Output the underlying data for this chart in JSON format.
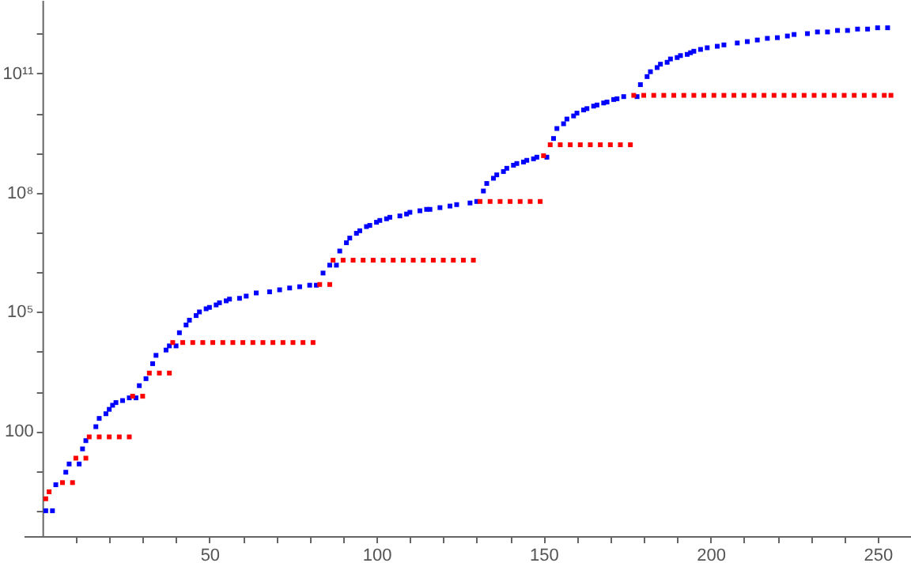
{
  "chart_data": {
    "type": "scatter",
    "series": [
      {
        "color": "#0000ff",
        "x": [
          1,
          3,
          4,
          7,
          8,
          11,
          12,
          13,
          16,
          17,
          19,
          20,
          21,
          22,
          24,
          26,
          28,
          29,
          31,
          33,
          34,
          37,
          38,
          40,
          41,
          43,
          44,
          46,
          47,
          49,
          50,
          52,
          53,
          55,
          56,
          59,
          61,
          64,
          68,
          71,
          74,
          77,
          80,
          82,
          84,
          86,
          88,
          89,
          91,
          92,
          94,
          95,
          97,
          98,
          100,
          101,
          103,
          104,
          107,
          109,
          110,
          113,
          115,
          116,
          119,
          122,
          124,
          128,
          130,
          132,
          133,
          135,
          136,
          138,
          139,
          141,
          142,
          144,
          145,
          147,
          148,
          151,
          153,
          154,
          156,
          157,
          159,
          160,
          162,
          163,
          165,
          166,
          168,
          169,
          171,
          172,
          174,
          178,
          179,
          181,
          182,
          184,
          185,
          187,
          188,
          190,
          191,
          193,
          194,
          195,
          197,
          199,
          202,
          204,
          208,
          211,
          214,
          217,
          220,
          223,
          225,
          229,
          232,
          235,
          238,
          241,
          244,
          247,
          250,
          253
        ],
        "values": [
          1,
          1,
          4.5,
          9.3,
          15,
          15,
          36,
          58,
          130,
          210,
          275,
          355,
          450,
          525,
          590,
          690,
          690,
          1400,
          2100,
          5000,
          8100,
          11000,
          14000,
          14000,
          30000,
          47000,
          62000,
          81000,
          100000,
          120000,
          130000,
          150000,
          170000,
          190000,
          210000,
          220000,
          250000,
          300000,
          320000,
          360000,
          400000,
          430000,
          470000,
          470000,
          950000,
          1500000.0,
          1500000.0,
          3400000.0,
          5500000.0,
          7200000.0,
          9500000.0,
          11000000.0,
          14000000.0,
          15000000.0,
          18000000.0,
          20000000.0,
          22000000.0,
          24000000.0,
          26000000.0,
          29000000.0,
          32000000.0,
          35000000.0,
          38000000.0,
          38000000.0,
          42000000.0,
          46000000.0,
          50000000.0,
          55000000.0,
          60000000.0,
          110000000.0,
          170000000.0,
          230000000.0,
          280000000.0,
          340000000.0,
          410000000.0,
          490000000.0,
          540000000.0,
          590000000.0,
          650000000.0,
          710000000.0,
          780000000.0,
          780000000.0,
          2300000000.0,
          4100000000.0,
          5400000000.0,
          7100000000.0,
          8500000000.0,
          10000000000.0,
          12000000000.0,
          13000000000.0,
          15000000000.0,
          16000000000.0,
          18000000000.0,
          19000000000.0,
          22000000000.0,
          23000000000.0,
          26000000000.0,
          26000000000.0,
          52000000000.0,
          83000000000.0,
          110000000000.0,
          140000000000.0,
          170000000000.0,
          190000000000.0,
          230000000000.0,
          250000000000.0,
          280000000000.0,
          300000000000.0,
          330000000000.0,
          360000000000.0,
          400000000000.0,
          440000000000.0,
          480000000000.0,
          520000000000.0,
          580000000000.0,
          630000000000.0,
          690000000000.0,
          760000000000.0,
          790000000000.0,
          870000000000.0,
          950000000000.0,
          1000000000000.0,
          1100000000000.0,
          1100000000000.0,
          1200000000000.0,
          1200000000000.0,
          1300000000000.0,
          1300000000000.0,
          1400000000000.0,
          1400000000000.0
        ]
      },
      {
        "color": "#ff0000",
        "x": [
          1,
          2,
          6,
          9,
          10,
          13,
          14,
          17,
          20,
          23,
          26,
          27,
          30,
          32,
          35,
          38,
          39,
          42,
          45,
          48,
          51,
          54,
          57,
          60,
          63,
          66,
          69,
          72,
          75,
          78,
          81,
          83,
          86,
          87,
          90,
          93,
          96,
          99,
          102,
          105,
          108,
          111,
          114,
          117,
          120,
          123,
          126,
          129,
          131,
          134,
          137,
          140,
          143,
          146,
          149,
          150,
          152,
          155,
          158,
          161,
          164,
          167,
          170,
          173,
          176,
          177,
          180,
          183,
          186,
          189,
          192,
          195,
          198,
          201,
          204,
          207,
          210,
          213,
          216,
          219,
          222,
          225,
          228,
          231,
          234,
          237,
          240,
          243,
          246,
          249,
          252,
          254
        ],
        "values": [
          2.0,
          3.0,
          5.1,
          5.1,
          21,
          21,
          72,
          72,
          72,
          72,
          72,
          760,
          760,
          2900,
          2900,
          2900,
          17000,
          17000,
          17000,
          17000,
          17000,
          17000,
          17000,
          17000,
          17000,
          17000,
          17000,
          17000,
          17000,
          17000,
          17000,
          490000,
          490000,
          2000000.0,
          2000000.0,
          2000000.0,
          2000000.0,
          2000000.0,
          2000000.0,
          2000000.0,
          2000000.0,
          2000000.0,
          2000000.0,
          2000000.0,
          2000000.0,
          2000000.0,
          2000000.0,
          2000000.0,
          60000000.0,
          60000000.0,
          60000000.0,
          60000000.0,
          60000000.0,
          60000000.0,
          60000000.0,
          850000000.0,
          1600000000.0,
          1600000000.0,
          1600000000.0,
          1600000000.0,
          1600000000.0,
          1600000000.0,
          1600000000.0,
          1600000000.0,
          1600000000.0,
          28000000000.0,
          28000000000.0,
          28000000000.0,
          28000000000.0,
          28000000000.0,
          28000000000.0,
          28000000000.0,
          28000000000.0,
          28000000000.0,
          28000000000.0,
          28000000000.0,
          28000000000.0,
          28000000000.0,
          28000000000.0,
          28000000000.0,
          28000000000.0,
          28000000000.0,
          28000000000.0,
          28000000000.0,
          28000000000.0,
          28000000000.0,
          28000000000.0,
          28000000000.0,
          28000000000.0,
          28000000000.0,
          28000000000.0,
          28000000000.0
        ]
      }
    ],
    "xlim": [
      -5.6,
      260
    ],
    "xticks": [
      {
        "value": 10,
        "label": null
      },
      {
        "value": 20,
        "label": null
      },
      {
        "value": 30,
        "label": null
      },
      {
        "value": 40,
        "label": null
      },
      50,
      {
        "value": 60,
        "label": null
      },
      {
        "value": 70,
        "label": null
      },
      {
        "value": 80,
        "label": null
      },
      {
        "value": 90,
        "label": null
      },
      100,
      {
        "value": 110,
        "label": null
      },
      {
        "value": 120,
        "label": null
      },
      {
        "value": 130,
        "label": null
      },
      {
        "value": 140,
        "label": null
      },
      150,
      {
        "value": 160,
        "label": null
      },
      {
        "value": 170,
        "label": null
      },
      {
        "value": 180,
        "label": null
      },
      {
        "value": 190,
        "label": null
      },
      200,
      {
        "value": 210,
        "label": null
      },
      {
        "value": 220,
        "label": null
      },
      {
        "value": 230,
        "label": null
      },
      {
        "value": 240,
        "label": null
      },
      250
    ],
    "ylim": [
      0.23,
      7000000000000.0
    ],
    "yticks": [
      {
        "value": 1,
        "label": null
      },
      {
        "value": 10,
        "label": null
      },
      100,
      {
        "value": 1000,
        "label": null
      },
      {
        "value": 10000,
        "label": null
      },
      {
        "value": 100000,
        "label": "10⁵"
      },
      {
        "value": 1000000,
        "label": null
      },
      {
        "value": 10000000,
        "label": null
      },
      {
        "value": 100000000,
        "label": "10⁸"
      },
      {
        "value": 1000000000,
        "label": null
      },
      {
        "value": 10000000000,
        "label": null
      },
      {
        "value": 100000000000,
        "label": "10¹¹"
      },
      {
        "value": 1000000000000,
        "label": null
      }
    ],
    "log": true,
    "grid": false,
    "marker": "square"
  }
}
